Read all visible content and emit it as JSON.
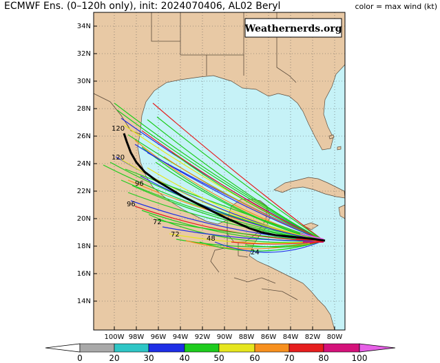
{
  "header": {
    "title": "ECMWF Ens. (0–120h only), init: 2024070406, AL02 Beryl",
    "color_legend": "color = max wind (kt)"
  },
  "brand": "Weathernerds.org",
  "map": {
    "lat_labels": [
      "34N",
      "32N",
      "30N",
      "28N",
      "26N",
      "24N",
      "22N",
      "20N",
      "18N",
      "16N",
      "14N"
    ],
    "lon_labels": [
      "100W",
      "98W",
      "96W",
      "94W",
      "92W",
      "90W",
      "88W",
      "86W",
      "84W",
      "82W",
      "80W"
    ],
    "colors": {
      "ocean": "#c6f2f7",
      "land": "#e8c9a5",
      "border": "#5a4a3a",
      "mean_track": "#000000"
    },
    "hour_labels": [
      "120",
      "120",
      "96",
      "96",
      "72",
      "72",
      "48",
      "24"
    ]
  },
  "colorbar": {
    "ticks": [
      "0",
      "20",
      "30",
      "40",
      "50",
      "60",
      "70",
      "80",
      "100"
    ],
    "bins": [
      {
        "color": "#a9a9a9"
      },
      {
        "color": "#2ec6c6"
      },
      {
        "color": "#1e2ee6"
      },
      {
        "color": "#1ecc1e"
      },
      {
        "color": "#e6e61e"
      },
      {
        "color": "#f7901e"
      },
      {
        "color": "#e61e1e"
      },
      {
        "color": "#d4127a"
      },
      {
        "color": "#e660e6"
      }
    ]
  }
}
